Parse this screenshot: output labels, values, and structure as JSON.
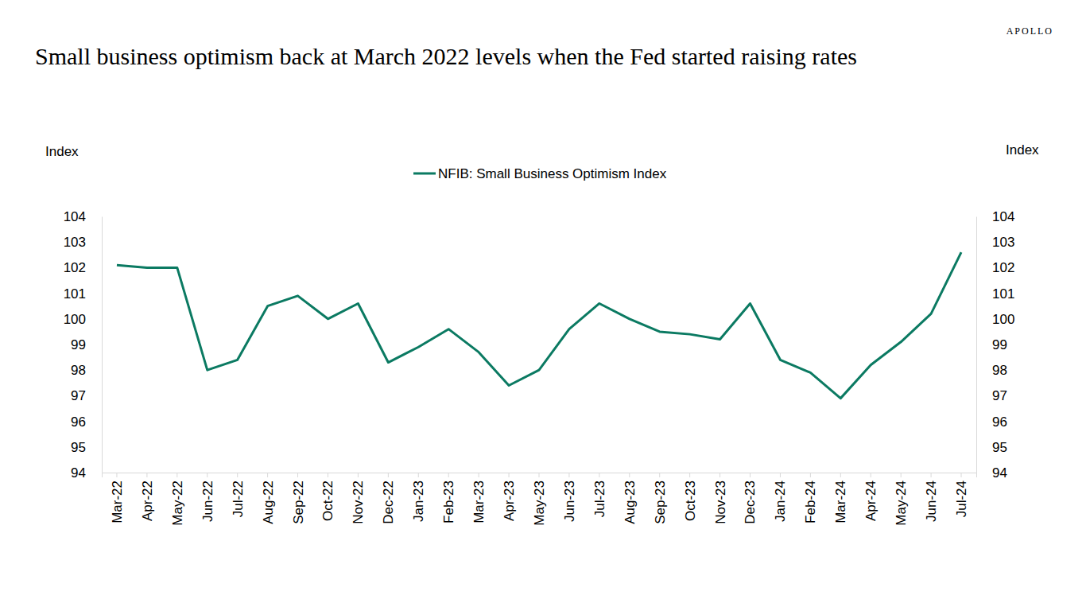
{
  "chart_data": {
    "type": "line",
    "title": "Small business optimism back at March 2022 levels when the Fed started raising rates",
    "logo": "APOLLO",
    "y_label": "Index",
    "y2_label": "Index",
    "categories": [
      "Mar-22",
      "Apr-22",
      "May-22",
      "Jun-22",
      "Jul-22",
      "Aug-22",
      "Sep-22",
      "Oct-22",
      "Nov-22",
      "Dec-22",
      "Jan-23",
      "Feb-23",
      "Mar-23",
      "Apr-23",
      "May-23",
      "Jun-23",
      "Jul-23",
      "Aug-23",
      "Sep-23",
      "Oct-23",
      "Nov-23",
      "Dec-23",
      "Jan-24",
      "Feb-24",
      "Mar-24",
      "Apr-24",
      "May-24",
      "Jun-24",
      "Jul-24"
    ],
    "series": [
      {
        "name": "NFIB: Small Business Optimism Index",
        "color": "#0b7a62",
        "values": [
          102.1,
          102.0,
          102.0,
          98.0,
          98.4,
          100.5,
          100.9,
          100.0,
          100.6,
          98.3,
          98.9,
          99.6,
          98.7,
          97.4,
          98.0,
          99.6,
          100.6,
          100.0,
          99.5,
          99.4,
          99.2,
          100.6,
          98.4,
          97.9,
          96.9,
          98.2,
          99.1,
          100.2,
          102.6
        ]
      }
    ],
    "ylim": [
      94,
      104
    ],
    "yticks": [
      94,
      95,
      96,
      97,
      98,
      99,
      100,
      101,
      102,
      103,
      104
    ],
    "y2lim": [
      94,
      104
    ],
    "y2ticks": [
      94,
      95,
      96,
      97,
      98,
      99,
      100,
      101,
      102,
      103,
      104
    ],
    "grid": false,
    "legend": "top"
  }
}
